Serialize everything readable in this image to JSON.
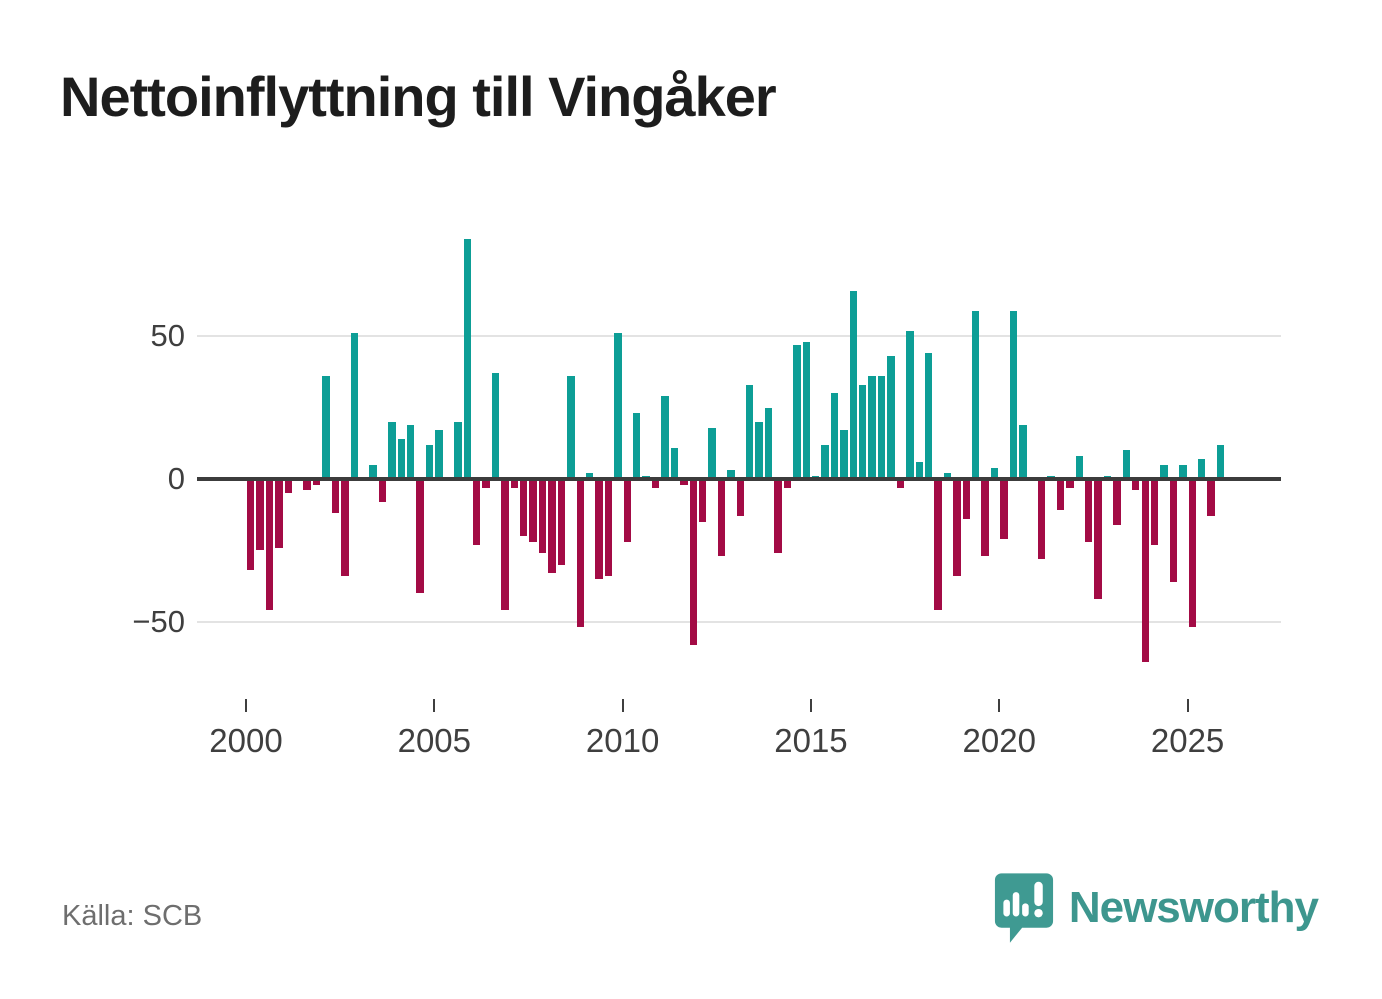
{
  "title": "Nettoinflyttning till Vingåker",
  "source": {
    "label": "Källa: SCB"
  },
  "branding": {
    "wordmark": "Newsworthy",
    "icon": "newsworthy-speech-bubble-barchart-icon"
  },
  "colors": {
    "positive": "#0D9E96",
    "negative": "#A30B45",
    "axis": "#3C3C3C",
    "gridline": "#E3E3E3",
    "ticklabel": "#3F3F3F",
    "title": "#1D1D1D",
    "source": "#6E6E6E",
    "logo": "#3D968E",
    "logo-bubble": "#3F9A92",
    "background": "#FFFFFF"
  },
  "chart_data": {
    "type": "bar",
    "title": "Nettoinflyttning till Vingåker",
    "subtitle": "",
    "unit": "net migration per quarter",
    "legend": "none",
    "grid": "horizontal gridlines at 50 and -50, dark zero axis",
    "x_axis": {
      "tick_years": [
        2000,
        2005,
        2010,
        2015,
        2020,
        2025
      ],
      "tick_labels": [
        "2000",
        "2005",
        "2010",
        "2015",
        "2020",
        "2025"
      ]
    },
    "y_axis": {
      "tick_values": [
        50,
        0,
        -50
      ],
      "tick_labels": [
        "50",
        "0",
        "−50"
      ],
      "range": [
        -70,
        90
      ]
    },
    "points": [
      {
        "t": "2000Q1",
        "v": -32
      },
      {
        "t": "2000Q2",
        "v": -25
      },
      {
        "t": "2000Q3",
        "v": -46
      },
      {
        "t": "2000Q4",
        "v": -24
      },
      {
        "t": "2001Q1",
        "v": -5
      },
      {
        "t": "2001Q2",
        "v": 0
      },
      {
        "t": "2001Q3",
        "v": -4
      },
      {
        "t": "2001Q4",
        "v": -2
      },
      {
        "t": "2002Q1",
        "v": 36
      },
      {
        "t": "2002Q2",
        "v": -12
      },
      {
        "t": "2002Q3",
        "v": -34
      },
      {
        "t": "2002Q4",
        "v": 51
      },
      {
        "t": "2003Q1",
        "v": 0
      },
      {
        "t": "2003Q2",
        "v": 5
      },
      {
        "t": "2003Q3",
        "v": -8
      },
      {
        "t": "2003Q4",
        "v": 20
      },
      {
        "t": "2004Q1",
        "v": 14
      },
      {
        "t": "2004Q2",
        "v": 19
      },
      {
        "t": "2004Q3",
        "v": -40
      },
      {
        "t": "2004Q4",
        "v": 12
      },
      {
        "t": "2005Q1",
        "v": 17
      },
      {
        "t": "2005Q2",
        "v": 0
      },
      {
        "t": "2005Q3",
        "v": 20
      },
      {
        "t": "2005Q4",
        "v": 84
      },
      {
        "t": "2006Q1",
        "v": -23
      },
      {
        "t": "2006Q2",
        "v": -3
      },
      {
        "t": "2006Q3",
        "v": 37
      },
      {
        "t": "2006Q4",
        "v": -46
      },
      {
        "t": "2007Q1",
        "v": -3
      },
      {
        "t": "2007Q2",
        "v": -20
      },
      {
        "t": "2007Q3",
        "v": -22
      },
      {
        "t": "2007Q4",
        "v": -26
      },
      {
        "t": "2008Q1",
        "v": -33
      },
      {
        "t": "2008Q2",
        "v": -30
      },
      {
        "t": "2008Q3",
        "v": 36
      },
      {
        "t": "2008Q4",
        "v": -52
      },
      {
        "t": "2009Q1",
        "v": 2
      },
      {
        "t": "2009Q2",
        "v": -35
      },
      {
        "t": "2009Q3",
        "v": -34
      },
      {
        "t": "2009Q4",
        "v": 51
      },
      {
        "t": "2010Q1",
        "v": -22
      },
      {
        "t": "2010Q2",
        "v": 23
      },
      {
        "t": "2010Q3",
        "v": 1
      },
      {
        "t": "2010Q4",
        "v": -3
      },
      {
        "t": "2011Q1",
        "v": 29
      },
      {
        "t": "2011Q2",
        "v": 11
      },
      {
        "t": "2011Q3",
        "v": -2
      },
      {
        "t": "2011Q4",
        "v": -58
      },
      {
        "t": "2012Q1",
        "v": -15
      },
      {
        "t": "2012Q2",
        "v": 18
      },
      {
        "t": "2012Q3",
        "v": -27
      },
      {
        "t": "2012Q4",
        "v": 3
      },
      {
        "t": "2013Q1",
        "v": -13
      },
      {
        "t": "2013Q2",
        "v": 33
      },
      {
        "t": "2013Q3",
        "v": 20
      },
      {
        "t": "2013Q4",
        "v": 25
      },
      {
        "t": "2014Q1",
        "v": -26
      },
      {
        "t": "2014Q2",
        "v": -3
      },
      {
        "t": "2014Q3",
        "v": 47
      },
      {
        "t": "2014Q4",
        "v": 48
      },
      {
        "t": "2015Q1",
        "v": 1
      },
      {
        "t": "2015Q2",
        "v": 12
      },
      {
        "t": "2015Q3",
        "v": 30
      },
      {
        "t": "2015Q4",
        "v": 17
      },
      {
        "t": "2016Q1",
        "v": 66
      },
      {
        "t": "2016Q2",
        "v": 33
      },
      {
        "t": "2016Q3",
        "v": 36
      },
      {
        "t": "2016Q4",
        "v": 36
      },
      {
        "t": "2017Q1",
        "v": 43
      },
      {
        "t": "2017Q2",
        "v": -3
      },
      {
        "t": "2017Q3",
        "v": 52
      },
      {
        "t": "2017Q4",
        "v": 6
      },
      {
        "t": "2018Q1",
        "v": 44
      },
      {
        "t": "2018Q2",
        "v": -46
      },
      {
        "t": "2018Q3",
        "v": 2
      },
      {
        "t": "2018Q4",
        "v": -34
      },
      {
        "t": "2019Q1",
        "v": -14
      },
      {
        "t": "2019Q2",
        "v": 59
      },
      {
        "t": "2019Q3",
        "v": -27
      },
      {
        "t": "2019Q4",
        "v": 4
      },
      {
        "t": "2020Q1",
        "v": -21
      },
      {
        "t": "2020Q2",
        "v": 59
      },
      {
        "t": "2020Q3",
        "v": 19
      },
      {
        "t": "2020Q4",
        "v": 0
      },
      {
        "t": "2021Q1",
        "v": -28
      },
      {
        "t": "2021Q2",
        "v": 1
      },
      {
        "t": "2021Q3",
        "v": -11
      },
      {
        "t": "2021Q4",
        "v": -3
      },
      {
        "t": "2022Q1",
        "v": 8
      },
      {
        "t": "2022Q2",
        "v": -22
      },
      {
        "t": "2022Q3",
        "v": -42
      },
      {
        "t": "2022Q4",
        "v": 1
      },
      {
        "t": "2023Q1",
        "v": -16
      },
      {
        "t": "2023Q2",
        "v": 10
      },
      {
        "t": "2023Q3",
        "v": -4
      },
      {
        "t": "2023Q4",
        "v": -64
      },
      {
        "t": "2024Q1",
        "v": -23
      },
      {
        "t": "2024Q2",
        "v": 5
      },
      {
        "t": "2024Q3",
        "v": -36
      },
      {
        "t": "2024Q4",
        "v": 5
      },
      {
        "t": "2025Q1",
        "v": -52
      },
      {
        "t": "2025Q2",
        "v": 7
      },
      {
        "t": "2025Q3",
        "v": -13
      },
      {
        "t": "2025Q4",
        "v": 12
      }
    ]
  }
}
